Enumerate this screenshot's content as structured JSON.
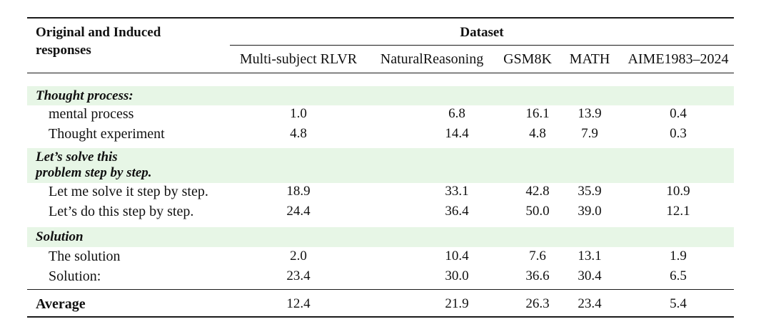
{
  "header": {
    "row_label": "Original and Induced responses",
    "row_label_line1": "Original and Induced",
    "row_label_line2": "responses",
    "group_title": "Dataset",
    "columns": [
      "Multi-subject RLVR",
      "NaturalReasoning",
      "GSM8K",
      "MATH",
      "AIME1983–2024"
    ]
  },
  "sections": [
    {
      "title": "Thought process:",
      "rows": [
        {
          "label": "mental process",
          "values": [
            "1.0",
            "6.8",
            "16.1",
            "13.9",
            "0.4"
          ]
        },
        {
          "label": "Thought experiment",
          "values": [
            "4.8",
            "14.4",
            "4.8",
            "7.9",
            "0.3"
          ]
        }
      ]
    },
    {
      "title": "Let’s solve this problem step by step.",
      "title_line1": "Let’s solve this",
      "title_line2": "problem step by step.",
      "rows": [
        {
          "label": "Let me solve it step by step.",
          "values": [
            "18.9",
            "33.1",
            "42.8",
            "35.9",
            "10.9"
          ]
        },
        {
          "label": "Let’s do this step by step.",
          "values": [
            "24.4",
            "36.4",
            "50.0",
            "39.0",
            "12.1"
          ]
        }
      ]
    },
    {
      "title": "Solution",
      "rows": [
        {
          "label": "The solution",
          "values": [
            "2.0",
            "10.4",
            "7.6",
            "13.1",
            "1.9"
          ]
        },
        {
          "label": "Solution:",
          "values": [
            "23.4",
            "30.0",
            "36.6",
            "30.4",
            "6.5"
          ]
        }
      ]
    }
  ],
  "average": {
    "label": "Average",
    "values": [
      "12.4",
      "21.9",
      "26.3",
      "23.4",
      "5.4"
    ]
  },
  "colors": {
    "section_band": "#e7f6e6",
    "rule": "#1a1a1a"
  }
}
